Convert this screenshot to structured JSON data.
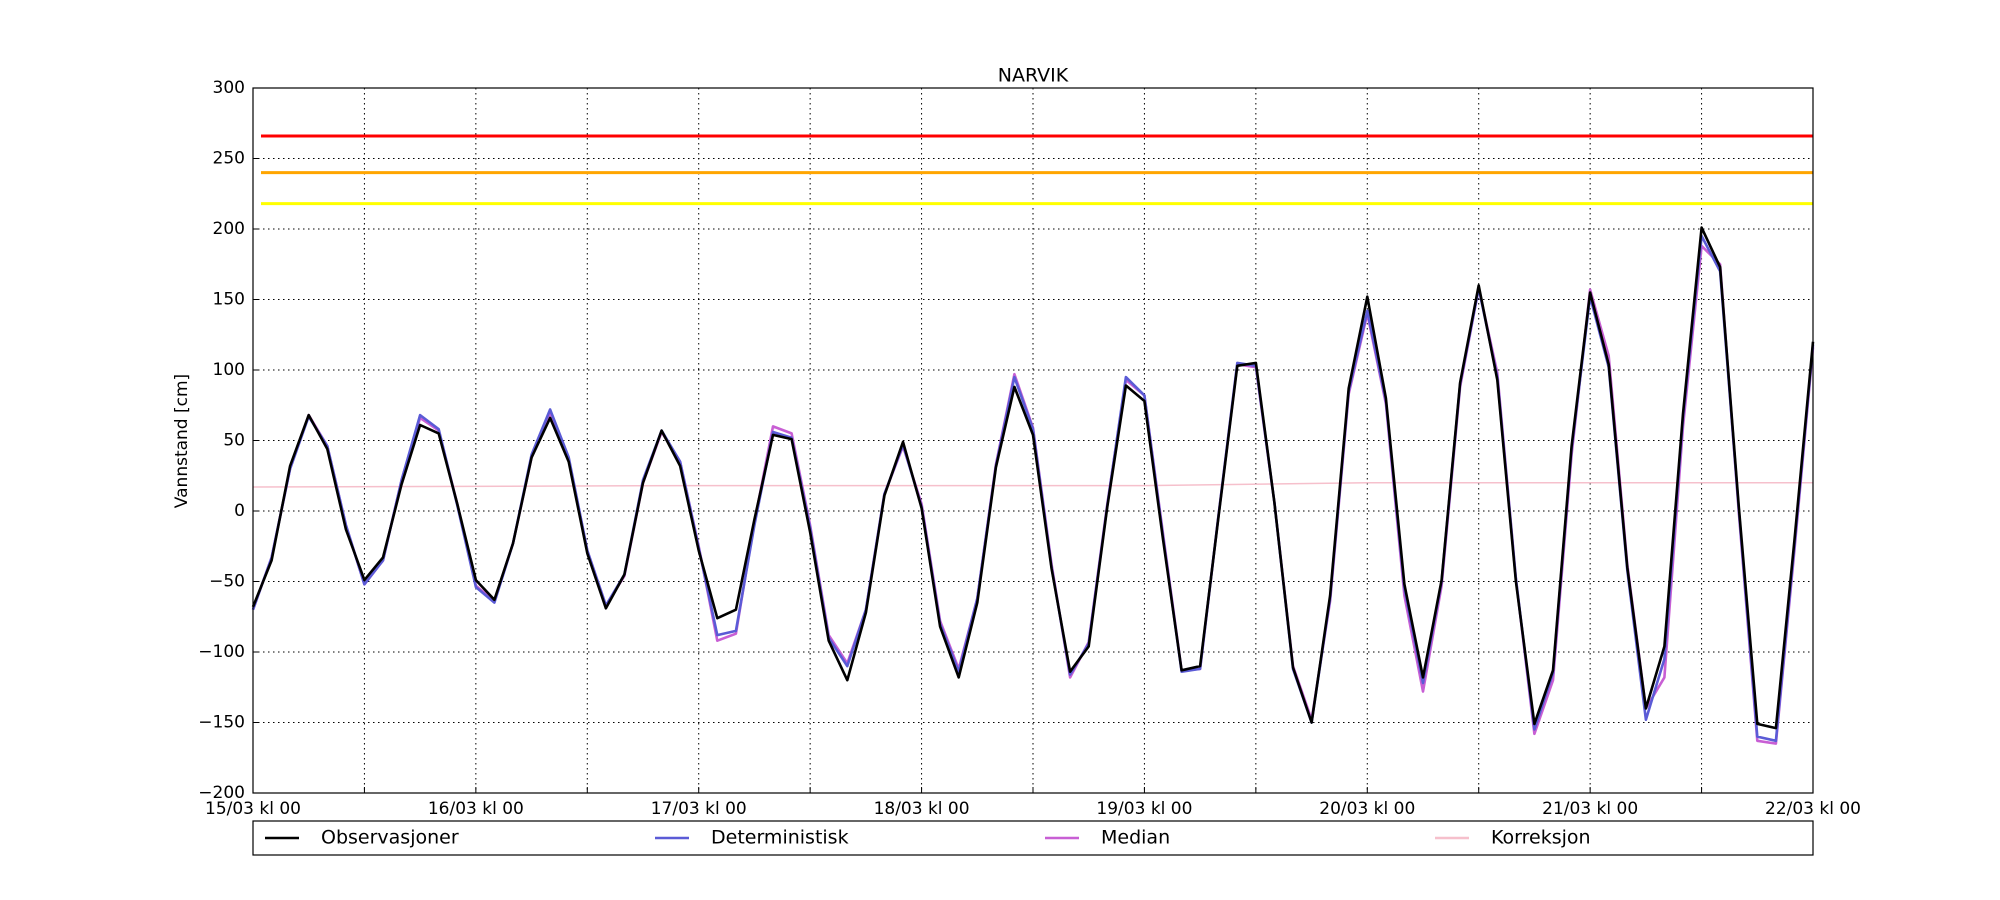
{
  "chart_data": {
    "type": "line",
    "title": "NARVIK",
    "ylabel": "Vannstand [cm]",
    "x": [
      0,
      2,
      4,
      6,
      8,
      10,
      12,
      14,
      16,
      18,
      20,
      22,
      24,
      26,
      28,
      30,
      32,
      34,
      36,
      38,
      40,
      42,
      44,
      46,
      48,
      50,
      52,
      54,
      56,
      58,
      60,
      62,
      64,
      66,
      68,
      70,
      72,
      74,
      76,
      78,
      80,
      82,
      84,
      86,
      88,
      90,
      92,
      94,
      96,
      98,
      100,
      102,
      104,
      106,
      108,
      110,
      112,
      114,
      116,
      118,
      120,
      122,
      124,
      126,
      128,
      130,
      132,
      134,
      136,
      138,
      140,
      142,
      144,
      146,
      148,
      150,
      152,
      154,
      156,
      158,
      160,
      162,
      164,
      166,
      168
    ],
    "series": [
      {
        "name": "Observasjoner",
        "color": "#000000",
        "values": [
          -68,
          -35,
          32,
          68,
          44,
          -13,
          -49,
          -33,
          19,
          61,
          55,
          5,
          -49,
          -63,
          -23,
          38,
          66,
          35,
          -30,
          -69,
          -45,
          20,
          57,
          32,
          -28,
          -76,
          -70,
          -6,
          54,
          51,
          -15,
          -92,
          -120,
          -72,
          11,
          49,
          2,
          -82,
          -118,
          -65,
          31,
          88,
          54,
          -41,
          -114,
          -96,
          3,
          89,
          78,
          -20,
          -113,
          -110,
          -3,
          103,
          105,
          6,
          -111,
          -150,
          -60,
          87,
          152,
          80,
          -52,
          -118,
          -49,
          91,
          160,
          93,
          -50,
          -151,
          -113,
          46,
          155,
          104,
          -40,
          -140,
          -96,
          69,
          201,
          173,
          4,
          -151,
          -154,
          -21,
          120
        ]
      },
      {
        "name": "Deterministisk",
        "color": "#5b5bd6",
        "values": [
          -70,
          -33,
          30,
          67,
          46,
          -10,
          -52,
          -35,
          22,
          68,
          58,
          4,
          -54,
          -65,
          -23,
          40,
          72,
          38,
          -28,
          -67,
          -45,
          22,
          57,
          35,
          -26,
          -88,
          -85,
          -10,
          56,
          52,
          -12,
          -90,
          -110,
          -70,
          12,
          47,
          3,
          -80,
          -114,
          -62,
          32,
          95,
          58,
          -40,
          -116,
          -94,
          4,
          95,
          82,
          -18,
          -114,
          -112,
          -2,
          105,
          103,
          6,
          -112,
          -150,
          -62,
          85,
          142,
          78,
          -55,
          -122,
          -50,
          90,
          158,
          95,
          -48,
          -155,
          -115,
          44,
          152,
          102,
          -42,
          -148,
          -105,
          66,
          195,
          170,
          2,
          -160,
          -163,
          -25,
          118
        ]
      },
      {
        "name": "Median",
        "color": "#c85fd4",
        "values": [
          -70,
          -33,
          30,
          68,
          46,
          -10,
          -52,
          -35,
          22,
          66,
          57,
          5,
          -53,
          -64,
          -23,
          38,
          70,
          37,
          -28,
          -67,
          -46,
          20,
          56,
          35,
          -25,
          -92,
          -87,
          -8,
          60,
          55,
          -10,
          -88,
          -108,
          -70,
          12,
          46,
          5,
          -78,
          -112,
          -62,
          33,
          97,
          59,
          -38,
          -118,
          -93,
          5,
          93,
          82,
          -16,
          -113,
          -112,
          -2,
          104,
          102,
          6,
          -110,
          -148,
          -64,
          83,
          140,
          76,
          -60,
          -128,
          -53,
          88,
          158,
          98,
          -48,
          -158,
          -120,
          40,
          157,
          110,
          -38,
          -140,
          -118,
          60,
          188,
          175,
          0,
          -163,
          -165,
          -28,
          116
        ]
      },
      {
        "name": "Korreksjon",
        "color": "#f6c0cc",
        "x": [
          0,
          48,
          96,
          120,
          168
        ],
        "values": [
          17,
          18,
          18,
          20,
          20
        ]
      }
    ],
    "hlines": [
      {
        "value": 266,
        "color": "#ff0000"
      },
      {
        "value": 240,
        "color": "#ffa500"
      },
      {
        "value": 218,
        "color": "#ffff00"
      }
    ],
    "xlim": [
      0,
      168
    ],
    "xticks": [
      {
        "value": 0,
        "label": "15/03 kl 00"
      },
      {
        "value": 24,
        "label": "16/03 kl 00"
      },
      {
        "value": 48,
        "label": "17/03 kl 00"
      },
      {
        "value": 72,
        "label": "18/03 kl 00"
      },
      {
        "value": 96,
        "label": "19/03 kl 00"
      },
      {
        "value": 120,
        "label": "20/03 kl 00"
      },
      {
        "value": 144,
        "label": "21/03 kl 00"
      },
      {
        "value": 168,
        "label": "22/03 kl 00"
      }
    ],
    "xminorticks": [
      12,
      36,
      60,
      84,
      108,
      132,
      156
    ],
    "ylim": [
      -200,
      300
    ],
    "yticks": [
      {
        "value": -200,
        "label": "−200"
      },
      {
        "value": -150,
        "label": "−150"
      },
      {
        "value": -100,
        "label": "−100"
      },
      {
        "value": -50,
        "label": "−50"
      },
      0,
      50,
      100,
      150,
      200,
      250,
      300
    ],
    "grid": true
  }
}
